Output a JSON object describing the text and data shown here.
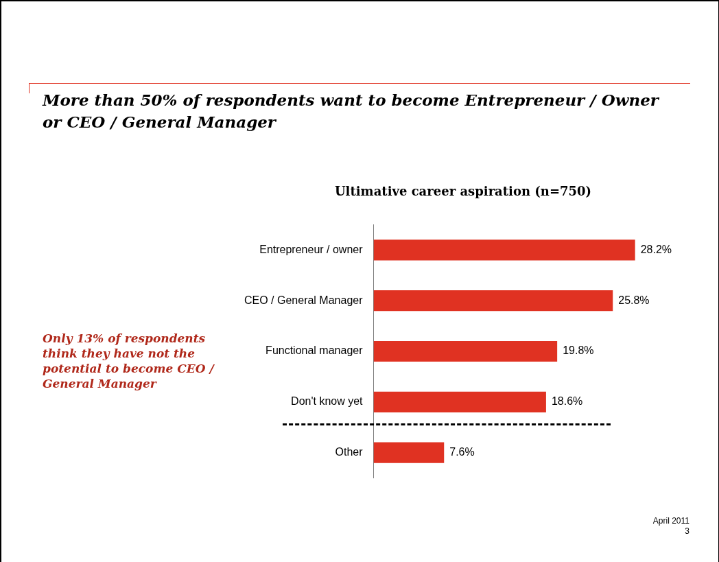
{
  "chart_data": {
    "type": "bar",
    "orientation": "horizontal",
    "title": "More than 50% of respondents want to become Entrepreneur / Owner or  CEO / General Manager",
    "subtitle": "Ultimative career aspiration (n=750)",
    "categories": [
      "Entrepreneur / owner",
      "CEO / General Manager",
      "Functional manager",
      "Don't know yet",
      "Other"
    ],
    "values": [
      28.2,
      25.8,
      19.8,
      18.6,
      7.6
    ],
    "color": "#e03222",
    "value_labels": [
      "28.2%",
      "25.8%",
      "19.8%",
      "18.6%",
      "7.6%"
    ],
    "annotations": [
      "Only 13% of respondents think they have not the potential to become CEO / General Manager",
      "April 2011",
      "3"
    ],
    "tick_labels": "y",
    "grid": false,
    "legend": false
  }
}
